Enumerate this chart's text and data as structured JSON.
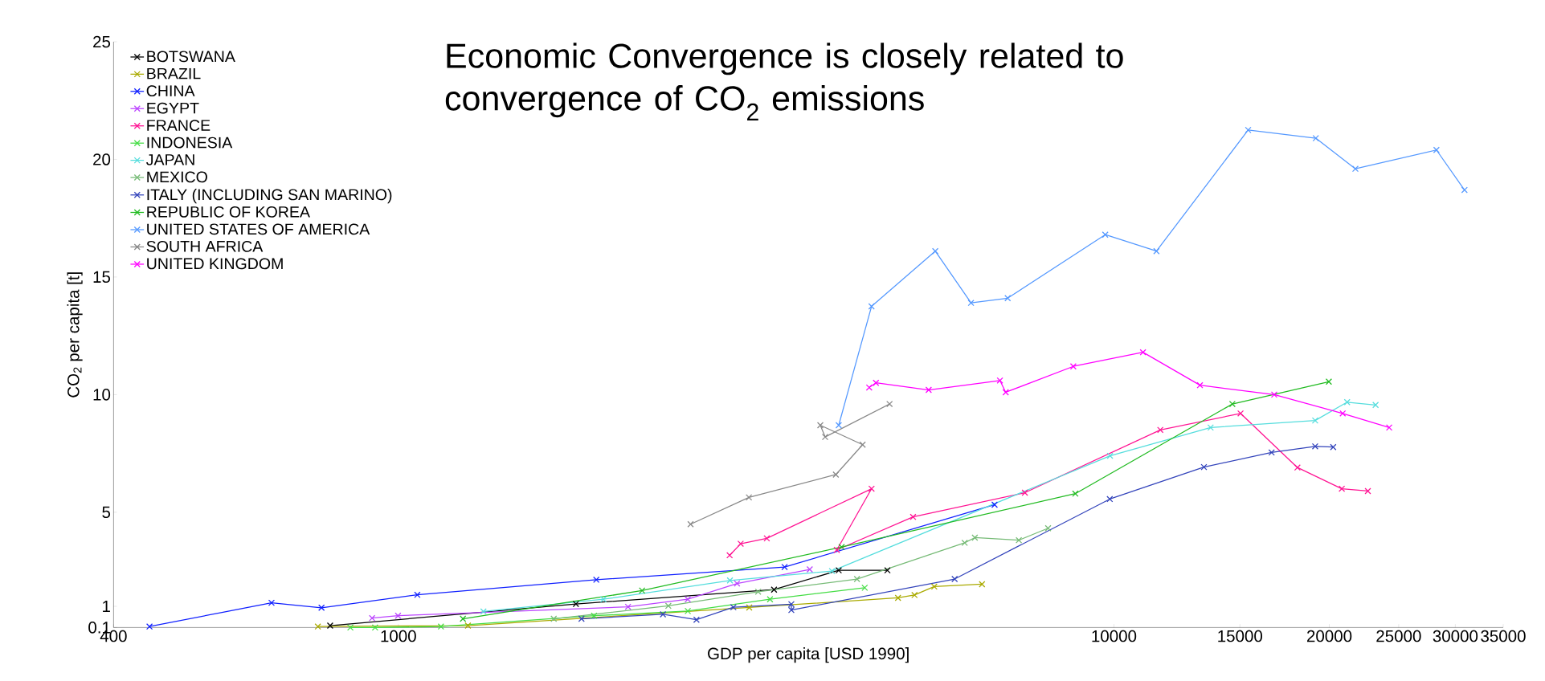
{
  "chart_data": {
    "type": "line",
    "title": "Economic Convergence is closely related to convergence of CO$_{2}$ emissions",
    "xlabel": "GDP per capita [USD 1990]",
    "ylabel": "CO$_{2}$ per capita [t]",
    "log": "x",
    "xlim": [
      400,
      35000
    ],
    "ylim": [
      0.1,
      25
    ],
    "xticks": [
      400,
      1000,
      10000,
      15000,
      20000,
      25000,
      30000,
      35000
    ],
    "yticks": [
      0.1,
      1,
      5,
      10,
      15,
      20,
      25
    ],
    "grid": false,
    "legend": "top left",
    "marker": "cross",
    "line_style": "solid",
    "series": [
      {
        "name": "BOTSWANA",
        "color": "#000000",
        "x": [
          803,
          1771,
          3350,
          4125,
          4825
        ],
        "values": [
          0.18,
          1.1,
          1.71,
          2.53,
          2.53
        ]
      },
      {
        "name": "BRAZIL",
        "color": "#aaaa00",
        "x": [
          772,
          1251,
          3093,
          4992,
          5264,
          5610,
          6542
        ],
        "values": [
          0.14,
          0.18,
          0.95,
          1.36,
          1.48,
          1.84,
          1.94
        ]
      },
      {
        "name": "CHINA",
        "color": "#1020ff",
        "x": [
          449,
          665,
          781,
          1063,
          1891,
          3466,
          6812
        ],
        "values": [
          0.14,
          1.15,
          0.94,
          1.49,
          2.13,
          2.67,
          5.32
        ]
      },
      {
        "name": "EGYPT",
        "color": "#bb44ff",
        "x": [
          919,
          999,
          2094,
          2538,
          2974,
          3758
        ],
        "values": [
          0.5,
          0.6,
          0.98,
          1.3,
          1.97,
          2.57
        ]
      },
      {
        "name": "FRANCE",
        "color": "#ff1493",
        "x": [
          2904,
          3009,
          3273,
          4585,
          4100,
          5240,
          7510,
          11610,
          15030,
          18050,
          20820,
          22640
        ],
        "values": [
          3.17,
          3.66,
          3.89,
          6.0,
          3.4,
          4.8,
          5.83,
          8.5,
          9.2,
          6.9,
          6.0,
          5.9
        ]
      },
      {
        "name": "INDONESIA",
        "color": "#44dd44",
        "x": [
          857,
          928,
          1147,
          1877,
          2538,
          3307,
          4485
        ],
        "values": [
          0.1,
          0.1,
          0.14,
          0.6,
          0.8,
          1.3,
          1.79
        ]
      },
      {
        "name": "JAPAN",
        "color": "#55dddd",
        "x": [
          1315,
          1935,
          2907,
          4036,
          9876,
          13650,
          19110,
          21180,
          23210
        ],
        "values": [
          0.78,
          1.3,
          2.1,
          2.5,
          7.4,
          8.6,
          8.9,
          9.68,
          9.56
        ]
      },
      {
        "name": "MEXICO",
        "color": "#77bb77",
        "x": [
          1649,
          2384,
          3183,
          4375,
          6187,
          6393,
          7365,
          8091
        ],
        "values": [
          0.47,
          1.02,
          1.62,
          2.16,
          3.7,
          3.92,
          3.81,
          4.32
        ]
      },
      {
        "name": "ITALY (INCLUDING SAN MARINO)",
        "color": "#3344bb",
        "x": [
          1803,
          2343,
          2610,
          2939,
          3542,
          3542,
          5990,
          9868,
          13360,
          16610,
          19110,
          20250
        ],
        "values": [
          0.47,
          0.66,
          0.43,
          0.96,
          1.09,
          0.84,
          2.16,
          5.56,
          6.92,
          7.54,
          7.8,
          7.77
        ]
      },
      {
        "name": "REPUBLIC OF KOREA",
        "color": "#22bb22",
        "x": [
          1231,
          2191,
          4164,
          8832,
          14640,
          19970
        ],
        "values": [
          0.47,
          1.67,
          3.52,
          5.79,
          9.6,
          10.55
        ]
      },
      {
        "name": "UNITED STATES OF AMERICA",
        "color": "#5599ff",
        "x": [
          4125,
          4584,
          5628,
          6314,
          7105,
          9725,
          11467,
          15403,
          19150,
          21750,
          28230,
          30900
        ],
        "values": [
          8.7,
          13.75,
          16.1,
          13.9,
          14.1,
          16.8,
          16.1,
          21.25,
          20.9,
          19.6,
          20.4,
          18.7
        ]
      },
      {
        "name": "SOUTH AFRICA",
        "color": "#888888",
        "x": [
          2561,
          3090,
          4087,
          4455,
          3888,
          3949,
          4858
        ],
        "values": [
          4.49,
          5.63,
          6.6,
          7.87,
          8.7,
          8.2,
          9.6
        ]
      },
      {
        "name": "UNITED KINGDOM",
        "color": "#ff00ff",
        "x": [
          4550,
          4650,
          5510,
          6930,
          7060,
          8775,
          10980,
          13190,
          16750,
          20880,
          24250
        ],
        "values": [
          10.3,
          10.5,
          10.2,
          10.6,
          10.1,
          11.2,
          11.8,
          10.4,
          10.0,
          9.2,
          8.6
        ]
      }
    ]
  }
}
